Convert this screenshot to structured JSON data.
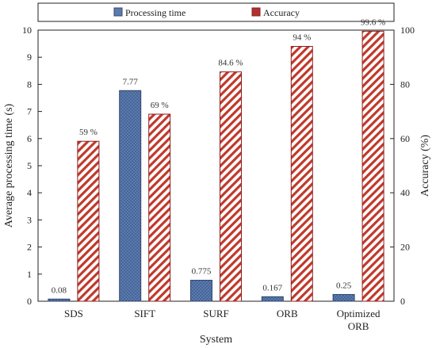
{
  "chart_data": {
    "type": "bar",
    "categories": [
      [
        "SDS"
      ],
      [
        "SIFT"
      ],
      [
        "SURF"
      ],
      [
        "ORB"
      ],
      [
        "Optimized",
        "ORB"
      ]
    ],
    "series": [
      {
        "name": "Processing time",
        "axis": "left",
        "values": [
          0.08,
          7.77,
          0.775,
          0.167,
          0.25
        ],
        "labels": [
          "0.08",
          "7.77",
          "0.775",
          "0.167",
          "0.25"
        ],
        "color": "#5b7bb0",
        "pattern": "dotted"
      },
      {
        "name": "Accuracy",
        "axis": "right",
        "values": [
          59,
          69,
          84.6,
          94,
          99.6
        ],
        "labels": [
          "59 %",
          "69 %",
          "84.6 %",
          "94 %",
          "99.6 %"
        ],
        "color": "#b03030",
        "pattern": "diagonal-stripes"
      }
    ],
    "xlabel": "System",
    "ylabel": "Average processing time (s)",
    "y2label": "Accuracy (%)",
    "ylim": [
      0,
      10
    ],
    "yticks": [
      0,
      1,
      2,
      3,
      4,
      5,
      6,
      7,
      8,
      9,
      10
    ],
    "y2lim": [
      0,
      100
    ],
    "y2ticks": [
      0,
      20,
      40,
      60,
      80,
      100
    ],
    "grid": false,
    "legend_position": "top"
  }
}
